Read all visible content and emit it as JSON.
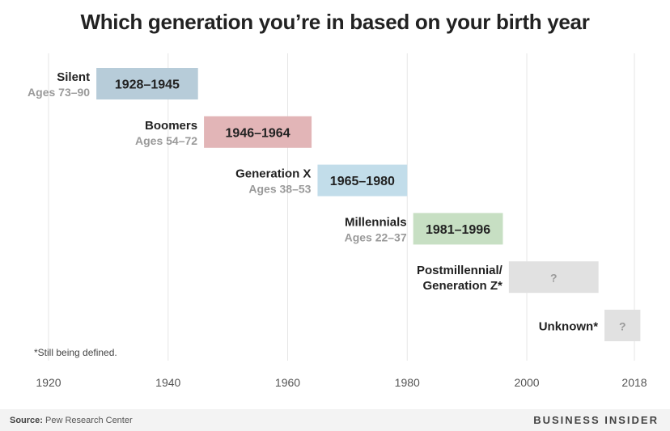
{
  "header": {
    "title": "Which generation you’re in based on your birth year"
  },
  "footer": {
    "source_label": "Source:",
    "source_text": "Pew Research Center",
    "brand": "BUSINESS INSIDER"
  },
  "chart_data": {
    "type": "bar",
    "orientation": "horizontal-range",
    "title": "Which generation you’re in based on your birth year",
    "xlim": [
      1920,
      2018
    ],
    "x_ticks": [
      1920,
      1940,
      1960,
      1980,
      2000,
      2018
    ],
    "grid": true,
    "series": [
      {
        "name": "Silent",
        "name_lines": [
          "Silent"
        ],
        "ages": "Ages 73–90",
        "start": 1928,
        "end": 1945,
        "bar_label": "1928–1945",
        "color": "#b7ccd9"
      },
      {
        "name": "Boomers",
        "name_lines": [
          "Boomers"
        ],
        "ages": "Ages 54–72",
        "start": 1946,
        "end": 1964,
        "bar_label": "1946–1964",
        "color": "#e2b5b7"
      },
      {
        "name": "Generation X",
        "name_lines": [
          "Generation X"
        ],
        "ages": "Ages 38–53",
        "start": 1965,
        "end": 1980,
        "bar_label": "1965–1980",
        "color": "#c2ddea"
      },
      {
        "name": "Millennials",
        "name_lines": [
          "Millennials"
        ],
        "ages": "Ages 22–37",
        "start": 1981,
        "end": 1996,
        "bar_label": "1981–1996",
        "color": "#c7dfc3"
      },
      {
        "name": "Postmillennial/ Generation Z*",
        "name_lines": [
          "Postmillennial/",
          "Generation Z*"
        ],
        "ages": "",
        "start": 1997,
        "end": 2012,
        "bar_label": "?",
        "color": "#e1e1e1"
      },
      {
        "name": "Unknown*",
        "name_lines": [
          "Unknown*"
        ],
        "ages": "",
        "start": 2013,
        "end": 2019,
        "bar_label": "?",
        "color": "#e1e1e1"
      }
    ],
    "note": "*Still being defined."
  }
}
